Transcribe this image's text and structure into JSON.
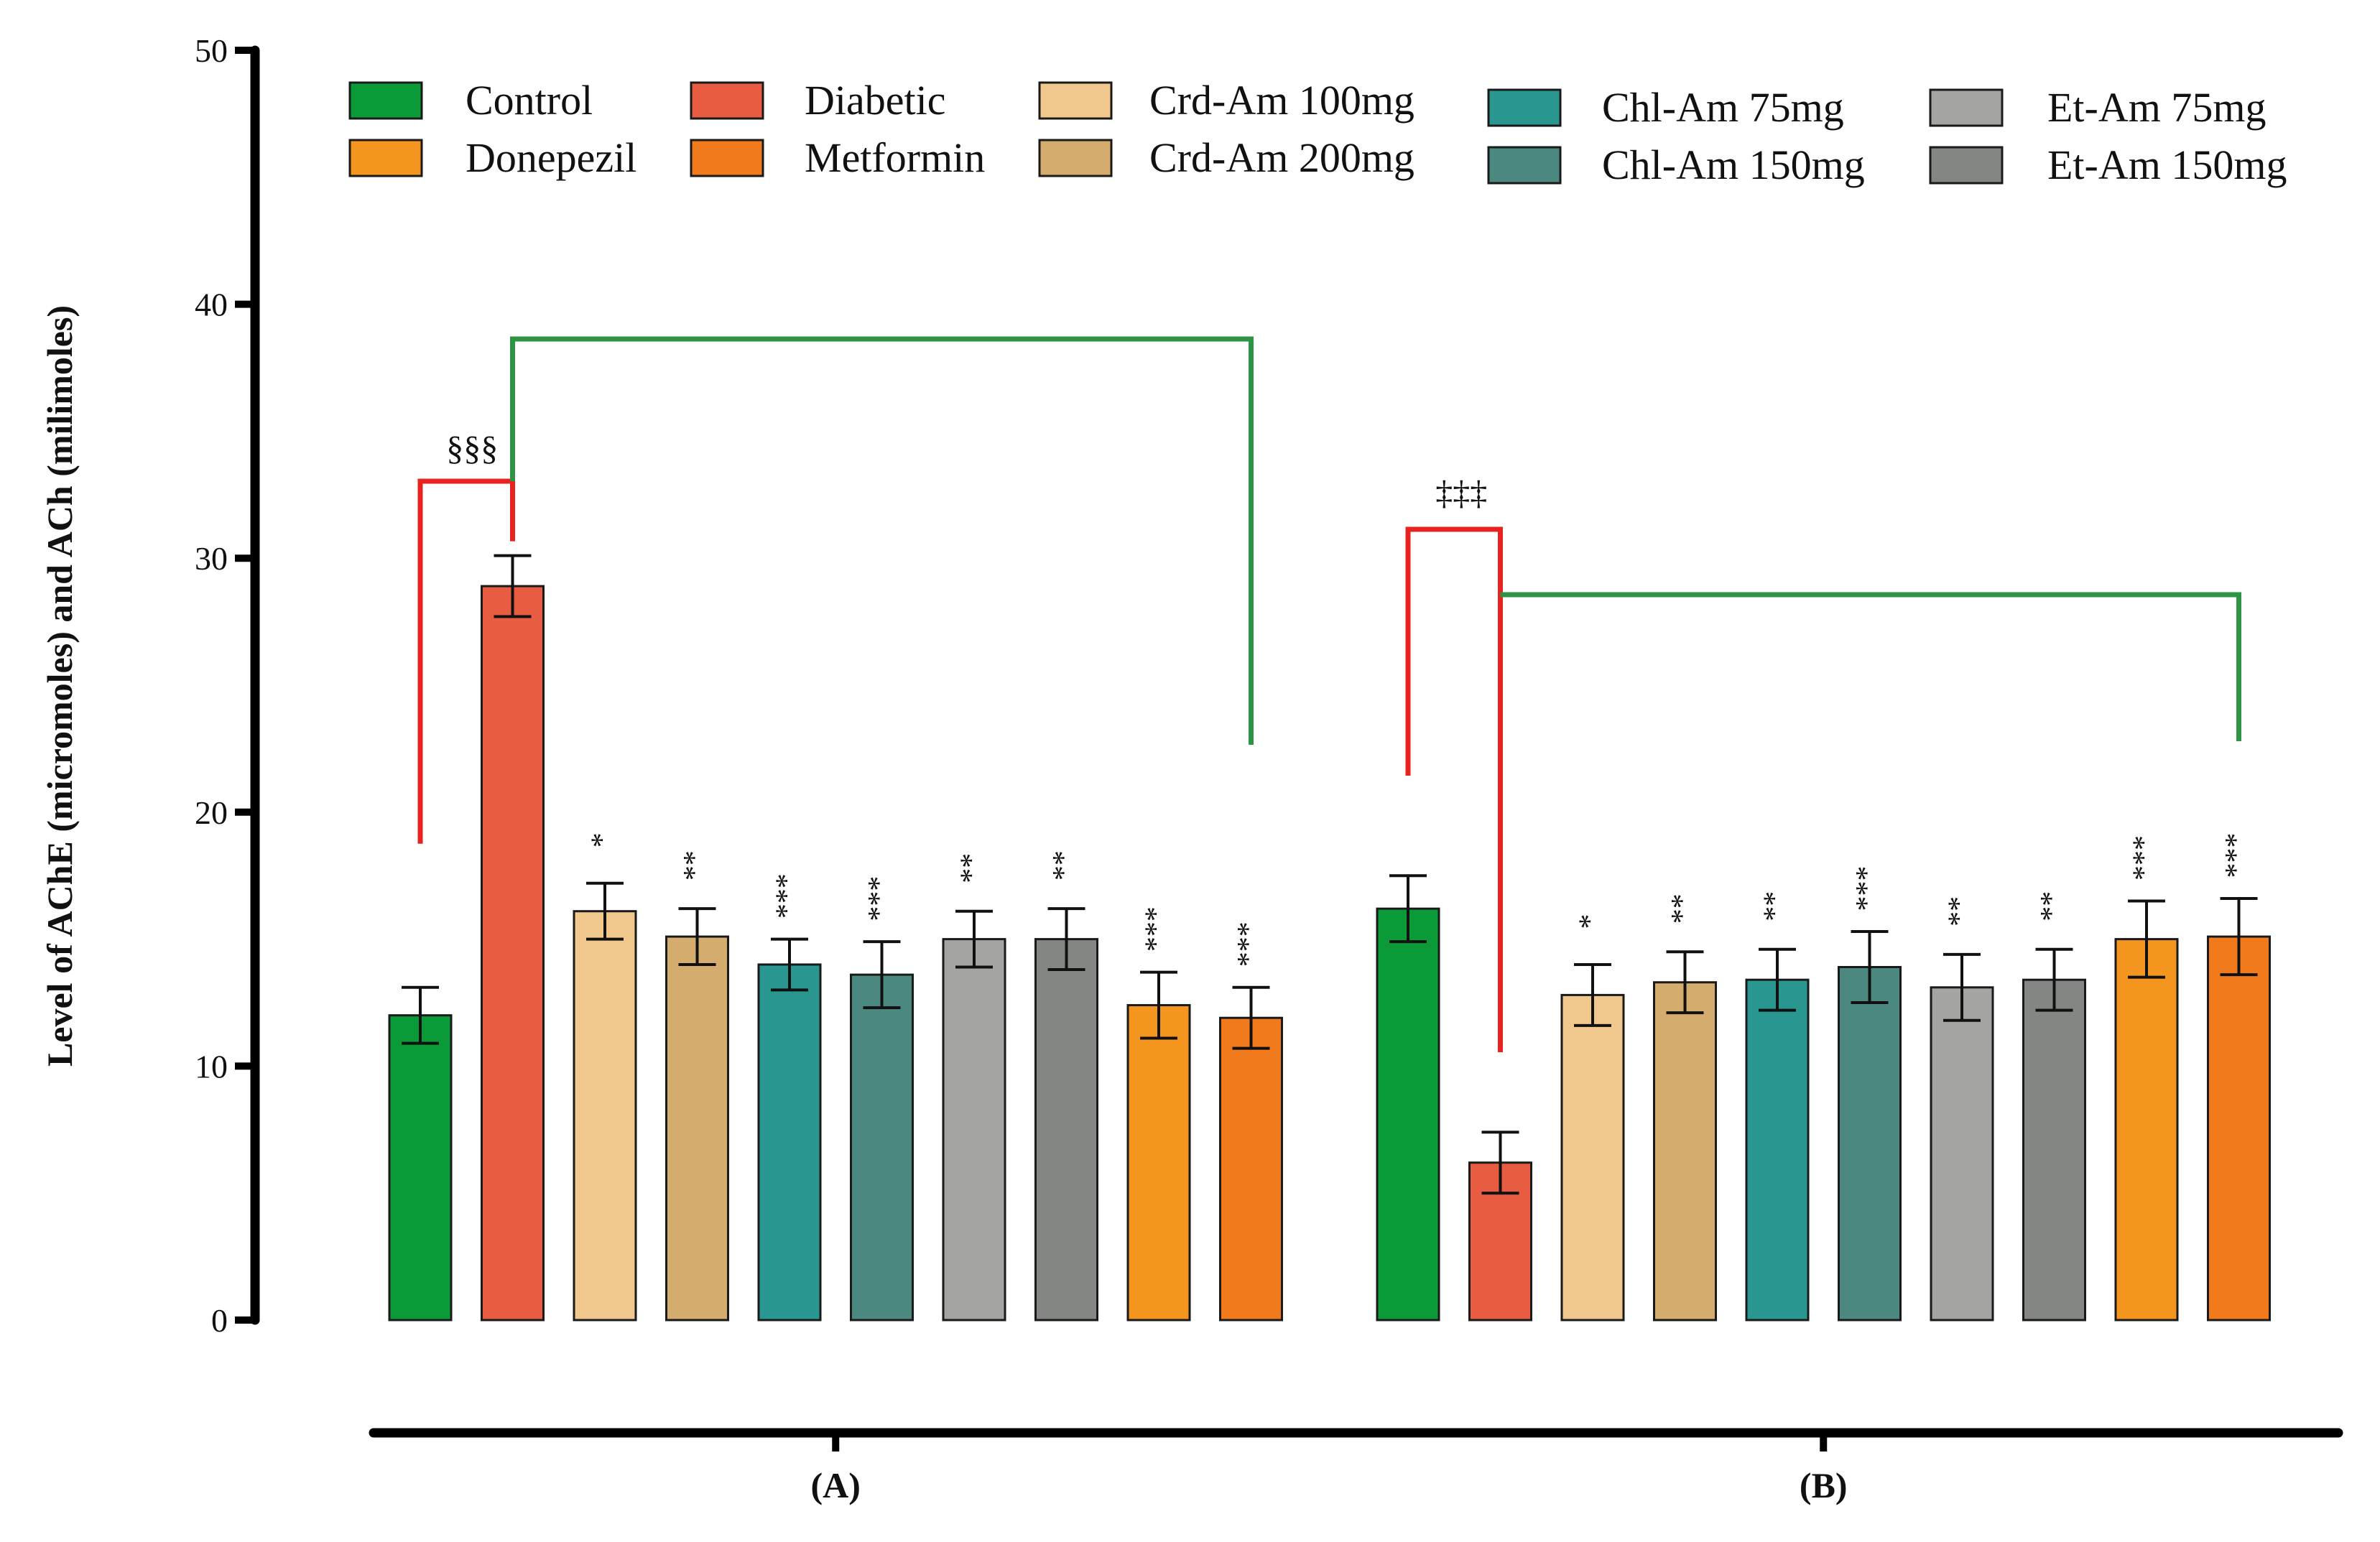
{
  "chart_data": {
    "type": "bar",
    "title": "",
    "ylabel": "Level of AChE (micromoles) and ACh (milimoles)",
    "xlabel": "",
    "ylim": [
      0,
      50
    ],
    "yticks": [
      0,
      10,
      20,
      30,
      40,
      50
    ],
    "grid": false,
    "legend_position": "top",
    "groups": [
      "(A)",
      "(B)"
    ],
    "series": [
      {
        "name": "Control",
        "color": "#0a9a37",
        "values": [
          12.0,
          16.2
        ],
        "errors": [
          1.1,
          1.3
        ],
        "stars": [
          "",
          ""
        ]
      },
      {
        "name": "Diabetic",
        "color": "#e85c41",
        "values": [
          28.9,
          6.2
        ],
        "errors": [
          1.2,
          1.2
        ],
        "stars": [
          "",
          ""
        ]
      },
      {
        "name": "Crd-Am 100mg",
        "color": "#f0c78d",
        "values": [
          16.1,
          12.8
        ],
        "errors": [
          1.1,
          1.2
        ],
        "stars": [
          "*",
          "*"
        ]
      },
      {
        "name": "Crd-Am 200mg",
        "color": "#d4ac6e",
        "values": [
          15.1,
          13.3
        ],
        "errors": [
          1.1,
          1.2
        ],
        "stars": [
          "**",
          "**"
        ]
      },
      {
        "name": "Chl-Am 75mg",
        "color": "#2a9690",
        "values": [
          14.0,
          13.4
        ],
        "errors": [
          1.0,
          1.2
        ],
        "stars": [
          "***",
          "**"
        ]
      },
      {
        "name": "Chl-Am 150mg",
        "color": "#4b8980",
        "values": [
          13.6,
          13.9
        ],
        "errors": [
          1.3,
          1.4
        ],
        "stars": [
          "***",
          "***"
        ]
      },
      {
        "name": "Et-Am 75mg",
        "color": "#a4a5a3",
        "values": [
          15.0,
          13.1
        ],
        "errors": [
          1.1,
          1.3
        ],
        "stars": [
          "**",
          "**"
        ]
      },
      {
        "name": "Et-Am 150mg",
        "color": "#848683",
        "values": [
          15.0,
          13.4
        ],
        "errors": [
          1.2,
          1.2
        ],
        "stars": [
          "**",
          "**"
        ]
      },
      {
        "name": "Donepezil",
        "color": "#f4951f",
        "values": [
          12.4,
          15.0
        ],
        "errors": [
          1.3,
          1.5
        ],
        "stars": [
          "***",
          "***"
        ]
      },
      {
        "name": "Metformin",
        "color": "#f07a1c",
        "values": [
          11.9,
          15.1
        ],
        "errors": [
          1.2,
          1.5
        ],
        "stars": [
          "***",
          "***"
        ]
      }
    ],
    "significance": [
      {
        "group": "(A)",
        "symbol": "§§§"
      },
      {
        "group": "(B)",
        "symbol": "‡‡‡"
      }
    ],
    "legend_order": [
      "Control",
      "Diabetic",
      "Crd-Am 100mg",
      "Chl-Am 75mg",
      "Et-Am 75mg",
      "Donepezil",
      "Metformin",
      "Crd-Am 200mg",
      "Chl-Am 150mg",
      "Et-Am 150mg"
    ]
  }
}
